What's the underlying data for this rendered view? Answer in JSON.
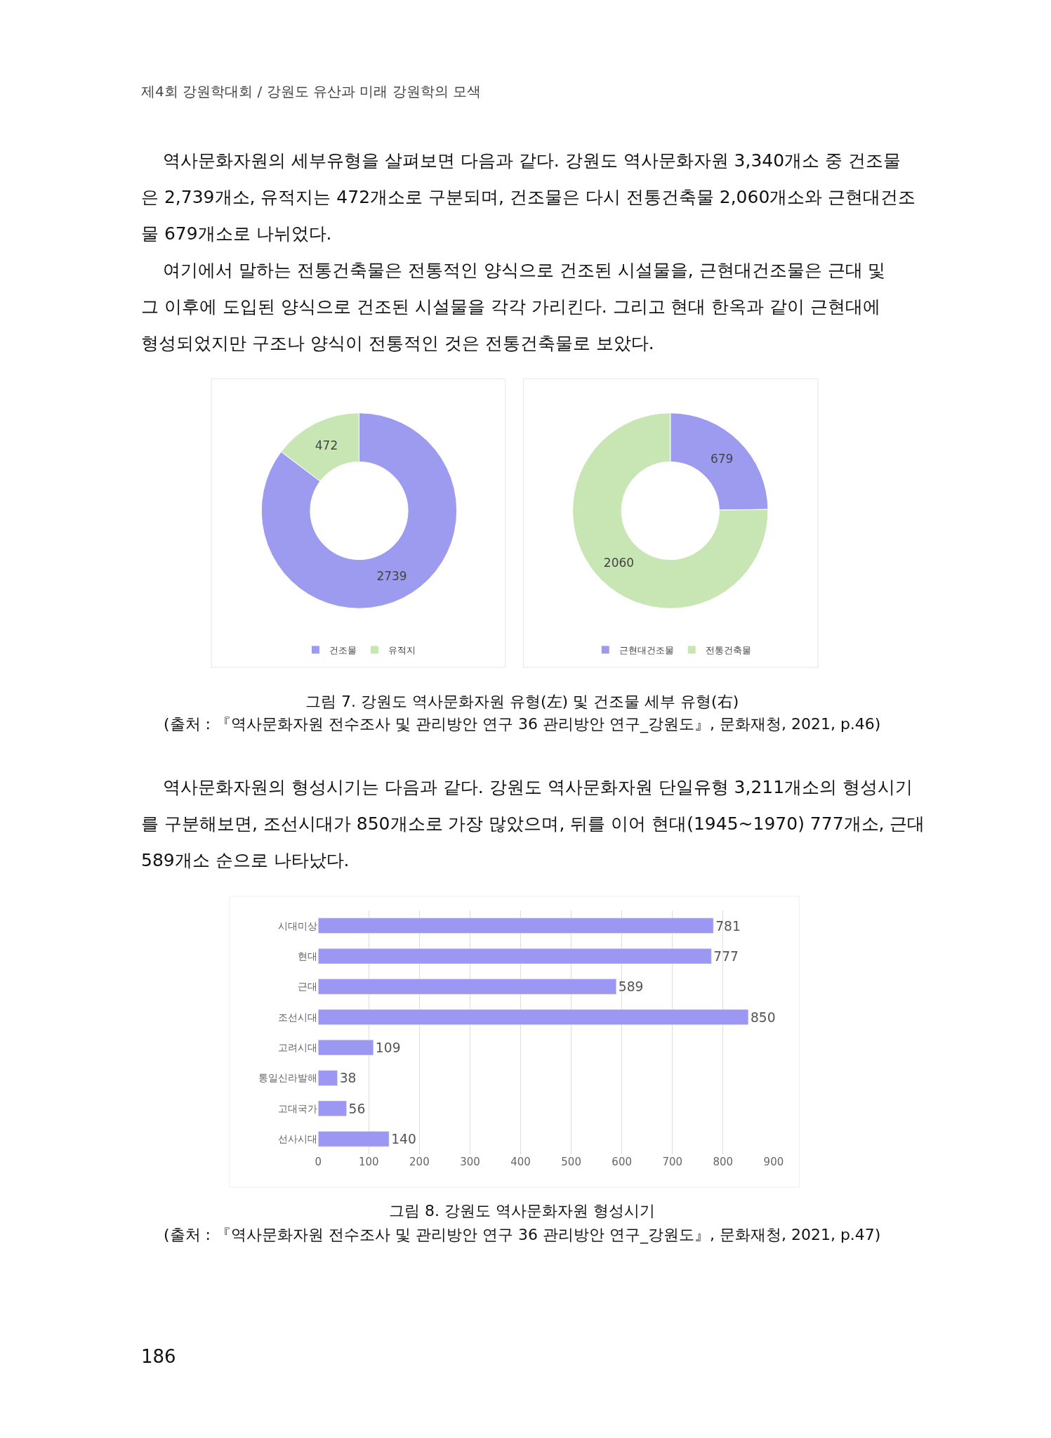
{
  "chart_data": [
    {
      "type": "donut",
      "categories": [
        "건조물",
        "유적지"
      ],
      "values": [
        2739,
        472
      ],
      "colors": [
        "#9d9bf0",
        "#c7e6b4"
      ],
      "data_labels": true,
      "legend": "bottom",
      "annotations": [
        "제4회 강원학대회 / 강원도 유산과 미래 강원학의 모색",
        "역사문화자원의 세부유형을 살펴보면 다음과 같다. 강원도 역사문화자원 3,340개소 중 건조물",
        "은 2,739개소, 유적지는 472개소로 구분되며, 건조물은 다시 전통건축물 2,060개소와 근현대건조",
        "물 679개소로 나뉘었다.",
        "여기에서 말하는 전통건축물은 전통적인 양식으로 건조된 시설물을, 근현대건조물은 근대 및",
        "그 이후에 도입된 양식으로 건조된 시설물을 각각 가리킨다. 그리고 현대 한옥과 같이 근현대에",
        "형성되었지만 구조나 양식이 전통적인 것은 전통건축물로 보았다."
      ]
    },
    {
      "type": "donut",
      "categories": [
        "근현대건조물",
        "전통건축물"
      ],
      "values": [
        679,
        2060
      ],
      "colors": [
        "#9d9bf0",
        "#c7e6b4"
      ],
      "data_labels": true,
      "legend": "bottom",
      "annotations": [
        "그림 7. 강원도 역사문화자원 유형(左) 및 건조물 세부 유형(右)",
        "(출처 : 『역사문화자원 전수조사 및 관리방안 연구 36 관리방안 연구_강원도』, 문화재청, 2021, p.46)"
      ]
    },
    {
      "type": "bar",
      "orientation": "horizontal",
      "categories": [
        "시대미상",
        "현대",
        "근대",
        "조선시대",
        "고려시대",
        "통일신라발해",
        "고대국가",
        "선사시대"
      ],
      "values": [
        781,
        777,
        589,
        850,
        109,
        38,
        56,
        140
      ],
      "color": "#9b97f2",
      "data_labels": true,
      "grid": "x",
      "xlim": [
        0,
        900
      ],
      "xticks": [
        0,
        100,
        200,
        300,
        400,
        500,
        600,
        700,
        800,
        900
      ],
      "annotations": [
        "역사문화자원의 형성시기는 다음과 같다. 강원도 역사문화자원 단일유형 3,211개소의 형성시기",
        "를 구분해보면, 조선시대가 850개소로 가장 많았으며, 뒤를 이어 현대(1945~1970) 777개소, 근대",
        "589개소 순으로 나타났다.",
        "그림 8. 강원도 역사문화자원 형성시기",
        "(출처 : 『역사문화자원 전수조사 및 관리방안 연구 36 관리방안 연구_강원도』, 문화재청, 2021, p.47)",
        "186"
      ]
    }
  ]
}
